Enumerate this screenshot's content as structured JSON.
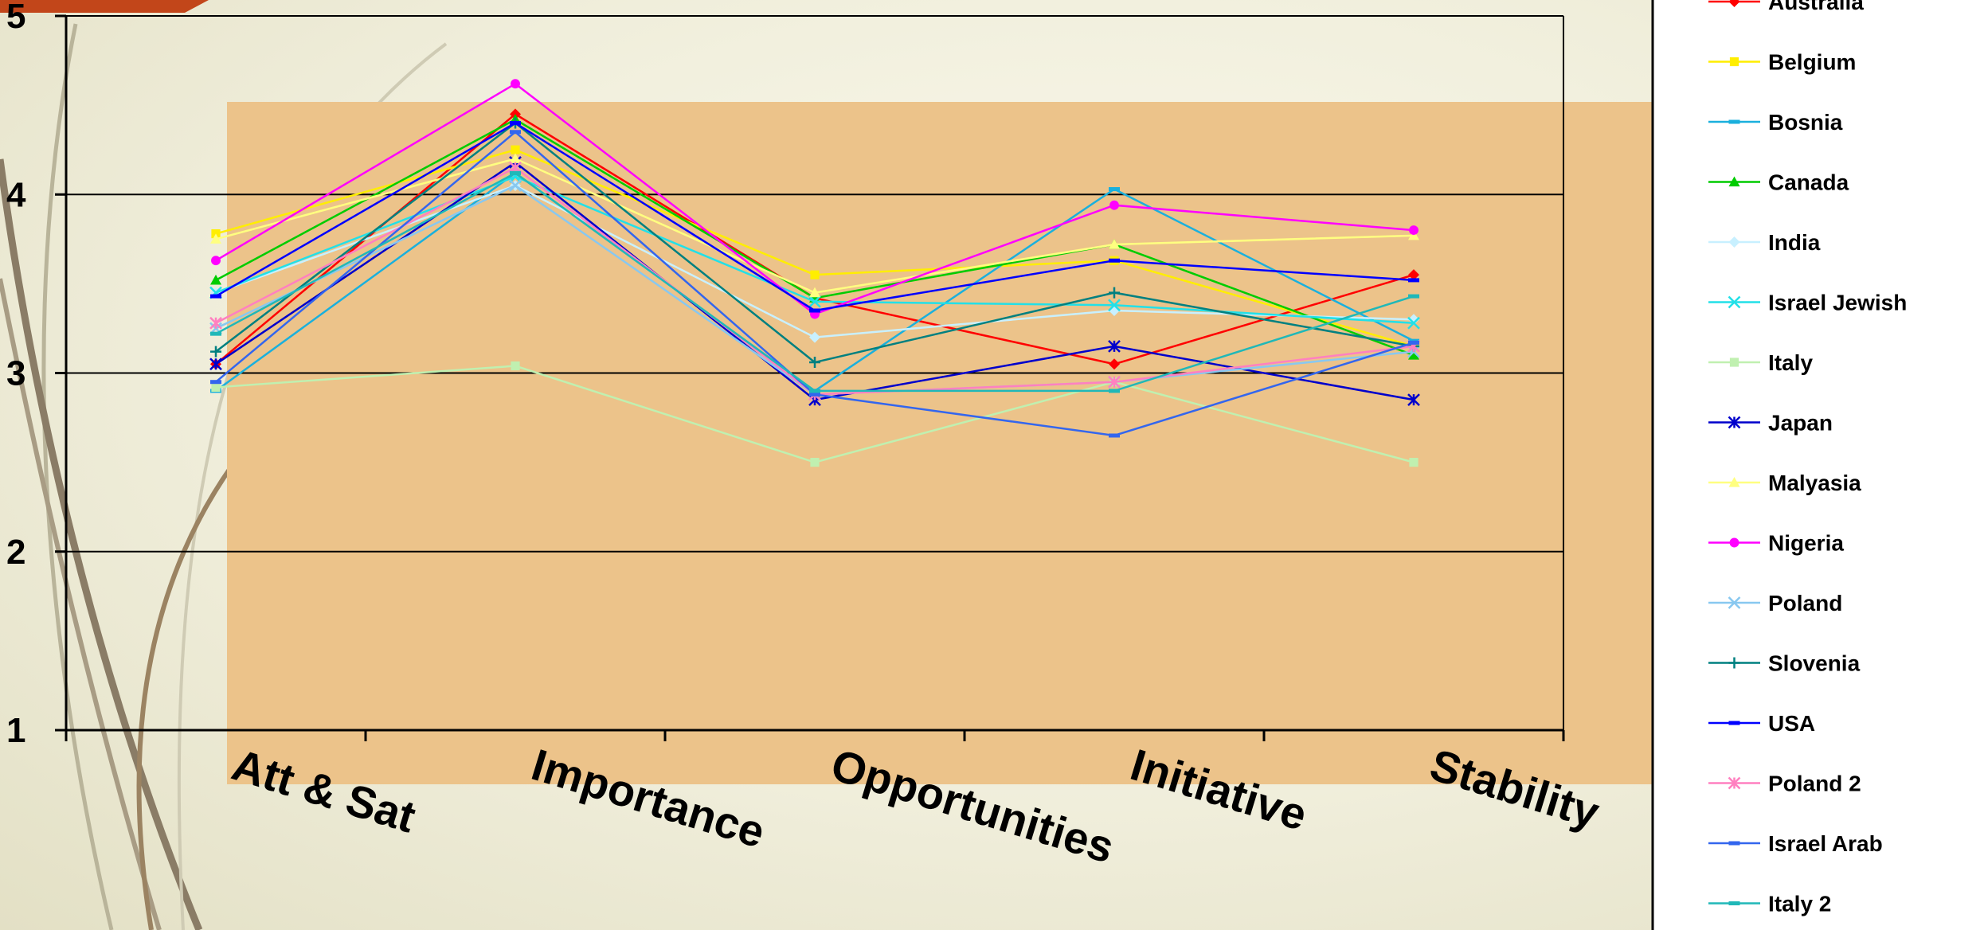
{
  "chart_data": {
    "type": "line",
    "title": "",
    "xlabel": "",
    "ylabel": "",
    "ylim": [
      1,
      5
    ],
    "yticks": [
      "1",
      "2",
      "3",
      "4",
      "5"
    ],
    "categories": [
      "Att & Sat",
      "Importance",
      "Opportunities",
      "Initiative",
      "Stability"
    ],
    "grid": "horizontal",
    "legend_position": "right",
    "series": [
      {
        "name": "Australia",
        "color": "#ff0000",
        "marker": "diamond",
        "values": [
          3.05,
          4.45,
          3.42,
          3.05,
          3.55
        ]
      },
      {
        "name": "Belgium",
        "color": "#ffee00",
        "marker": "square",
        "values": [
          3.78,
          4.25,
          3.55,
          3.63,
          3.15
        ]
      },
      {
        "name": "Bosnia",
        "color": "#1ab0dd",
        "marker": "dash",
        "values": [
          2.9,
          4.12,
          2.9,
          4.03,
          3.18
        ]
      },
      {
        "name": "Canada",
        "color": "#00cc00",
        "marker": "triangle",
        "values": [
          3.52,
          4.42,
          3.42,
          3.72,
          3.1
        ]
      },
      {
        "name": "India",
        "color": "#c8f0ff",
        "marker": "diamond",
        "values": [
          3.45,
          4.05,
          3.2,
          3.35,
          3.3
        ]
      },
      {
        "name": "Israel Jewish",
        "color": "#22e0e8",
        "marker": "x",
        "values": [
          3.45,
          4.1,
          3.4,
          3.38,
          3.28
        ]
      },
      {
        "name": "Italy",
        "color": "#c0f0b0",
        "marker": "square",
        "values": [
          2.92,
          3.04,
          2.5,
          2.95,
          2.5
        ]
      },
      {
        "name": "Japan",
        "color": "#0000cc",
        "marker": "asterisk",
        "values": [
          3.05,
          4.18,
          2.85,
          3.15,
          2.85
        ]
      },
      {
        "name": "Malyasia",
        "color": "#ffff80",
        "marker": "triangle",
        "values": [
          3.75,
          4.2,
          3.45,
          3.72,
          3.77
        ]
      },
      {
        "name": "Nigeria",
        "color": "#ff00ff",
        "marker": "circle",
        "values": [
          3.63,
          4.62,
          3.33,
          3.94,
          3.8
        ]
      },
      {
        "name": "Poland",
        "color": "#88c8f0",
        "marker": "x",
        "values": [
          3.25,
          4.05,
          2.88,
          2.95,
          3.12
        ]
      },
      {
        "name": "Slovenia",
        "color": "#008080",
        "marker": "plus",
        "values": [
          3.12,
          4.4,
          3.06,
          3.45,
          3.15
        ]
      },
      {
        "name": "USA",
        "color": "#0000ff",
        "marker": "dash",
        "values": [
          3.43,
          4.4,
          3.35,
          3.63,
          3.52
        ]
      },
      {
        "name": "Poland 2",
        "color": "#ff80c0",
        "marker": "asterisk",
        "values": [
          3.28,
          4.15,
          2.88,
          2.95,
          3.15
        ]
      },
      {
        "name": "Israel Arab",
        "color": "#3366ee",
        "marker": "dash",
        "values": [
          2.95,
          4.35,
          2.88,
          2.65,
          3.17
        ]
      },
      {
        "name": "Italy 2",
        "color": "#20b8b8",
        "marker": "dash",
        "values": [
          3.22,
          4.12,
          2.9,
          2.9,
          3.43
        ]
      }
    ]
  }
}
